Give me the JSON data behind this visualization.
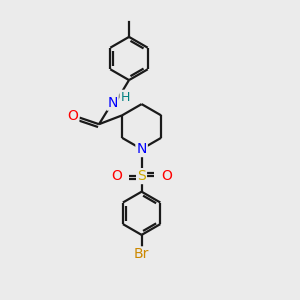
{
  "bg_color": "#ebebeb",
  "bond_color": "#1a1a1a",
  "bond_width": 1.6,
  "atom_colors": {
    "N": "#0000ff",
    "O": "#ff0000",
    "S": "#ccaa00",
    "Br": "#cc8800",
    "H": "#008080",
    "C": "#1a1a1a"
  },
  "font_size": 9,
  "fig_size": [
    3.0,
    3.0
  ],
  "dpi": 100
}
